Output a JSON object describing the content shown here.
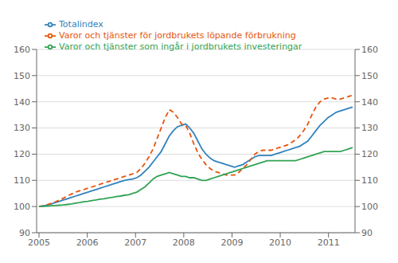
{
  "chart_data": {
    "type": "line",
    "title": "",
    "x": [
      2005,
      2005.0844,
      2005.1688,
      2005.2532,
      2005.3377,
      2005.4221,
      2005.5065,
      2005.5909,
      2005.6753,
      2005.7597,
      2005.8442,
      2005.9286,
      2006.013,
      2006.0974,
      2006.1818,
      2006.2662,
      2006.3506,
      2006.4351,
      2006.5195,
      2006.6039,
      2006.6883,
      2006.7727,
      2006.8571,
      2006.9416,
      2007.026,
      2007.1104,
      2007.1948,
      2007.2792,
      2007.3636,
      2007.4481,
      2007.5325,
      2007.6169,
      2007.7013,
      2007.7857,
      2007.8701,
      2007.9545,
      2008.039,
      2008.1234,
      2008.2078,
      2008.2922,
      2008.3766,
      2008.461,
      2008.5455,
      2008.6299,
      2008.7143,
      2008.7987,
      2008.8831,
      2008.9675,
      2009.0519,
      2009.1364,
      2009.2208,
      2009.3052,
      2009.3896,
      2009.474,
      2009.5584,
      2009.6429,
      2009.7273,
      2009.8117,
      2009.8961,
      2009.9805,
      2010.0649,
      2010.1494,
      2010.2338,
      2010.3182,
      2010.4026,
      2010.487,
      2010.5714,
      2010.6558,
      2010.7403,
      2010.8247,
      2010.9091,
      2010.9935,
      2011.0779,
      2011.1623,
      2011.2468,
      2011.3312,
      2011.4156,
      2011.5
    ],
    "series": [
      {
        "name": "Totalindex",
        "line_style": "solid",
        "values": [
          100.0,
          100.2,
          100.5,
          101.0,
          101.5,
          102.0,
          102.5,
          103.0,
          103.5,
          104.0,
          104.5,
          105.0,
          105.5,
          106.0,
          106.5,
          107.0,
          107.5,
          108.0,
          108.5,
          109.0,
          109.5,
          110.0,
          110.3,
          110.5,
          111.0,
          112.0,
          113.5,
          115.0,
          117.0,
          119.0,
          121.0,
          124.0,
          127.0,
          129.0,
          130.5,
          131.0,
          131.5,
          130.0,
          128.0,
          125.0,
          122.0,
          120.0,
          118.5,
          117.5,
          117.0,
          116.5,
          116.0,
          115.5,
          115.0,
          115.5,
          116.0,
          117.0,
          118.0,
          119.0,
          119.5,
          119.5,
          119.5,
          119.5,
          120.0,
          120.5,
          121.0,
          121.5,
          122.0,
          122.5,
          123.0,
          124.0,
          125.0,
          127.0,
          129.0,
          131.0,
          132.5,
          134.0,
          135.0,
          136.0,
          136.5,
          137.0,
          137.5,
          138.0
        ]
      },
      {
        "name": "Varor och tjänster för jordbrukets löpande förbrukning",
        "line_style": "dashed",
        "values": [
          100.0,
          100.3,
          100.7,
          101.2,
          101.8,
          102.5,
          103.2,
          104.0,
          104.8,
          105.5,
          106.0,
          106.5,
          107.0,
          107.5,
          108.0,
          108.5,
          109.0,
          109.5,
          110.0,
          110.5,
          111.0,
          111.5,
          112.0,
          112.5,
          113.0,
          114.5,
          116.5,
          119.0,
          122.0,
          126.0,
          130.0,
          134.0,
          137.0,
          136.0,
          134.0,
          131.5,
          131.0,
          128.0,
          124.0,
          120.5,
          118.0,
          116.0,
          114.5,
          113.5,
          113.0,
          112.5,
          112.0,
          112.0,
          112.0,
          113.0,
          114.5,
          116.0,
          118.0,
          120.0,
          121.0,
          121.5,
          121.5,
          121.5,
          122.0,
          122.5,
          123.0,
          123.5,
          124.5,
          125.5,
          127.0,
          129.0,
          131.5,
          135.0,
          138.0,
          140.0,
          141.0,
          141.5,
          141.5,
          141.0,
          141.0,
          141.5,
          142.0,
          142.5
        ]
      },
      {
        "name": "Varor och tjänster som ingår i jordbrukets investeringar",
        "line_style": "solid",
        "values": [
          100.0,
          100.1,
          100.2,
          100.3,
          100.4,
          100.5,
          100.6,
          100.8,
          101.0,
          101.3,
          101.5,
          101.8,
          102.0,
          102.3,
          102.5,
          102.8,
          103.0,
          103.3,
          103.5,
          103.8,
          104.0,
          104.3,
          104.5,
          105.0,
          105.5,
          106.5,
          107.5,
          109.0,
          110.5,
          111.5,
          112.0,
          112.5,
          113.0,
          112.5,
          112.0,
          111.5,
          111.5,
          111.0,
          111.0,
          110.5,
          110.0,
          110.0,
          110.5,
          111.0,
          111.5,
          112.0,
          112.5,
          113.0,
          113.5,
          114.0,
          114.5,
          115.0,
          115.5,
          116.0,
          116.5,
          117.0,
          117.5,
          117.5,
          117.5,
          117.5,
          117.5,
          117.5,
          117.5,
          117.5,
          118.0,
          118.5,
          119.0,
          119.5,
          120.0,
          120.5,
          121.0,
          121.0,
          121.0,
          121.0,
          121.0,
          121.5,
          122.0,
          122.5
        ]
      }
    ],
    "xlim": [
      2004.95,
      2011.55
    ],
    "xticks": [
      2005,
      2006,
      2007,
      2008,
      2009,
      2010,
      2011
    ],
    "ylim": [
      90,
      160
    ],
    "yticks": [
      90,
      100,
      110,
      120,
      130,
      140,
      150,
      160
    ],
    "y2lim": [
      90,
      160
    ],
    "y2ticks": [
      90,
      100,
      110,
      120,
      130,
      140,
      150,
      160
    ],
    "grid": true,
    "legend": "upper left"
  }
}
